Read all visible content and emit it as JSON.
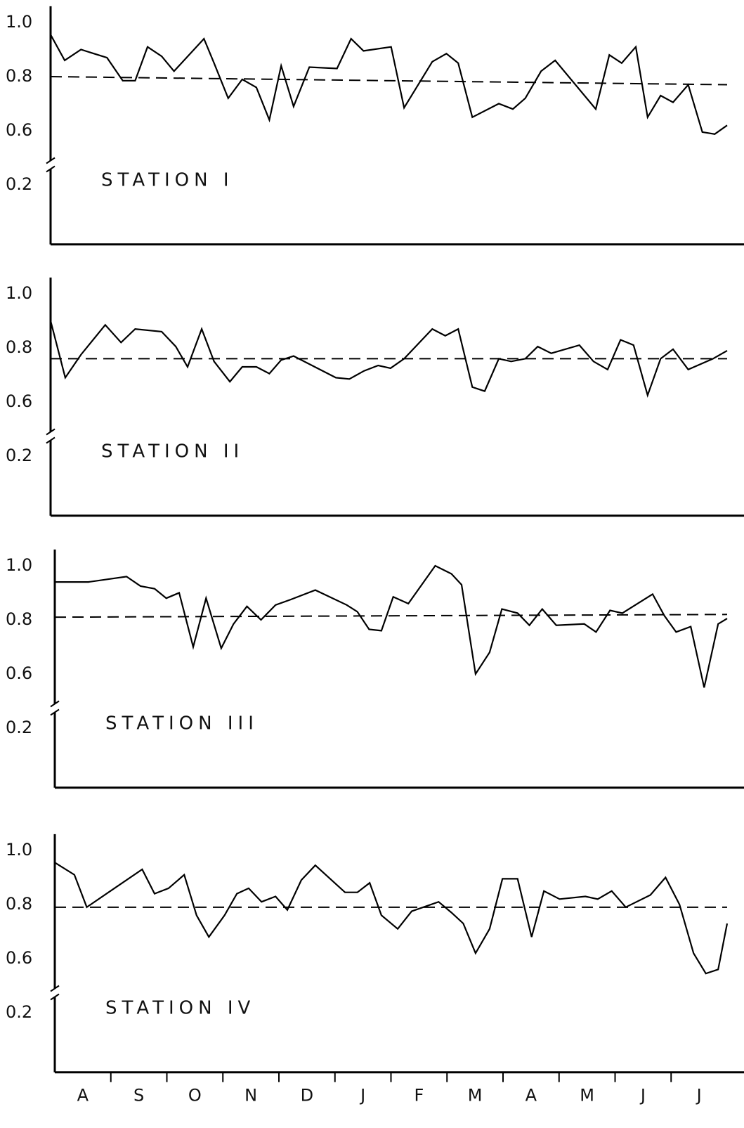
{
  "chart_data": [
    {
      "type": "line",
      "title": "STATION I",
      "color": "#000000",
      "broken_axis": true,
      "ylim": [
        0,
        1.07
      ],
      "yticks": [
        0.2,
        0.6,
        0.8,
        {
          "value": 1.0,
          "label": "1.0"
        }
      ],
      "xlim": [
        0,
        12
      ],
      "reference_line": [
        0.8,
        0.77
      ],
      "x": [
        0,
        0.25,
        0.54,
        1.0,
        1.28,
        1.5,
        1.72,
        1.97,
        2.19,
        2.72,
        2.9,
        3.15,
        3.4,
        3.65,
        3.88,
        4.09,
        4.31,
        4.59,
        5.08,
        5.33,
        5.55,
        6.04,
        6.27,
        6.77,
        7.02,
        7.23,
        7.48,
        7.95,
        8.2,
        8.42,
        8.7,
        8.95,
        9.67,
        9.91,
        10.13,
        10.38,
        10.59,
        10.82,
        11.04,
        11.31,
        11.56,
        11.78,
        12.0
      ],
      "values": [
        0.955,
        0.86,
        0.9,
        0.87,
        0.785,
        0.785,
        0.91,
        0.875,
        0.82,
        0.94,
        0.85,
        0.72,
        0.79,
        0.76,
        0.64,
        0.84,
        0.69,
        0.835,
        0.83,
        0.94,
        0.895,
        0.91,
        0.685,
        0.855,
        0.885,
        0.85,
        0.65,
        0.7,
        0.68,
        0.72,
        0.82,
        0.86,
        0.68,
        0.88,
        0.85,
        0.91,
        0.65,
        0.73,
        0.705,
        0.77,
        0.59,
        0.575,
        0.62
      ]
    },
    {
      "type": "line",
      "title": "STATION II",
      "color": "#000000",
      "broken_axis": true,
      "ylim": [
        0,
        1.07
      ],
      "yticks": [
        0.2,
        0.6,
        0.8,
        {
          "value": 1.0,
          "label": "1.0"
        }
      ],
      "xlim": [
        0,
        12
      ],
      "reference_line": [
        0.76,
        0.76
      ],
      "x": [
        0,
        0.26,
        0.54,
        0.97,
        1.25,
        1.5,
        1.97,
        2.22,
        2.43,
        2.68,
        2.9,
        3.18,
        3.4,
        3.65,
        3.88,
        4.09,
        4.31,
        5.06,
        5.3,
        5.56,
        5.81,
        6.03,
        6.27,
        6.77,
        7.0,
        7.23,
        7.48,
        7.7,
        7.95,
        8.17,
        8.42,
        8.64,
        8.88,
        9.38,
        9.63,
        9.88,
        10.11,
        10.34,
        10.59,
        10.82,
        11.04,
        11.31,
        11.75,
        12.0
      ],
      "values": [
        0.9,
        0.69,
        0.775,
        0.885,
        0.82,
        0.87,
        0.86,
        0.805,
        0.73,
        0.87,
        0.75,
        0.675,
        0.73,
        0.73,
        0.705,
        0.755,
        0.77,
        0.69,
        0.685,
        0.715,
        0.735,
        0.725,
        0.76,
        0.87,
        0.845,
        0.87,
        0.655,
        0.64,
        0.76,
        0.75,
        0.76,
        0.805,
        0.78,
        0.81,
        0.75,
        0.72,
        0.83,
        0.81,
        0.625,
        0.76,
        0.795,
        0.72,
        0.76,
        0.79
      ]
    },
    {
      "type": "line",
      "title": "STATION III",
      "color": "#000000",
      "broken_axis": true,
      "ylim": [
        0,
        1.07
      ],
      "yticks": [
        0.2,
        0.6,
        0.8,
        {
          "value": 1.0,
          "label": "1.0"
        }
      ],
      "xlim": [
        0,
        12
      ],
      "reference_line": [
        0.81,
        0.82
      ],
      "x": [
        0,
        0.6,
        1.28,
        1.53,
        1.78,
        1.99,
        2.22,
        2.47,
        2.7,
        2.97,
        3.19,
        3.43,
        3.68,
        3.94,
        4.21,
        4.65,
        5.21,
        5.4,
        5.61,
        5.83,
        6.04,
        6.31,
        6.79,
        7.08,
        7.26,
        7.51,
        7.76,
        7.98,
        8.26,
        8.47,
        8.7,
        8.95,
        9.45,
        9.66,
        9.91,
        10.13,
        10.67,
        10.88,
        11.09,
        11.35,
        11.59,
        11.84,
        12.0
      ],
      "values": [
        0.94,
        0.94,
        0.96,
        0.925,
        0.915,
        0.88,
        0.9,
        0.7,
        0.88,
        0.695,
        0.785,
        0.85,
        0.8,
        0.855,
        0.875,
        0.91,
        0.855,
        0.83,
        0.765,
        0.76,
        0.885,
        0.86,
        1.0,
        0.97,
        0.93,
        0.6,
        0.68,
        0.84,
        0.825,
        0.78,
        0.84,
        0.78,
        0.785,
        0.755,
        0.835,
        0.825,
        0.895,
        0.815,
        0.755,
        0.775,
        0.5,
        0.785,
        0.805
      ]
    },
    {
      "type": "line",
      "title": "STATION IV",
      "color": "#000000",
      "broken_axis": true,
      "ylim": [
        0,
        1.07
      ],
      "yticks": [
        0.2,
        0.6,
        0.8,
        {
          "value": 1.0,
          "label": "1.0"
        }
      ],
      "xlim": [
        0,
        12
      ],
      "reference_line": [
        0.79,
        0.79
      ],
      "categories": [
        "A",
        "S",
        "O",
        "N",
        "D",
        "J",
        "F",
        "M",
        "A",
        "M",
        "J",
        "J"
      ],
      "x": [
        0,
        0.35,
        0.57,
        1.03,
        1.56,
        1.78,
        2.03,
        2.31,
        2.53,
        2.75,
        3.03,
        3.25,
        3.46,
        3.69,
        3.94,
        4.15,
        4.4,
        4.65,
        5.18,
        5.4,
        5.62,
        5.83,
        6.12,
        6.37,
        6.85,
        7.08,
        7.29,
        7.51,
        7.76,
        7.99,
        8.26,
        8.51,
        8.73,
        9.01,
        9.47,
        9.69,
        9.94,
        10.19,
        10.63,
        10.9,
        11.15,
        11.4,
        11.62,
        11.84,
        12.0
      ],
      "values": [
        0.955,
        0.91,
        0.79,
        0.855,
        0.93,
        0.84,
        0.86,
        0.91,
        0.76,
        0.68,
        0.76,
        0.84,
        0.86,
        0.81,
        0.83,
        0.78,
        0.89,
        0.945,
        0.845,
        0.845,
        0.88,
        0.76,
        0.71,
        0.775,
        0.81,
        0.77,
        0.73,
        0.62,
        0.71,
        0.895,
        0.895,
        0.68,
        0.85,
        0.82,
        0.83,
        0.82,
        0.85,
        0.79,
        0.835,
        0.9,
        0.8,
        0.62,
        0.49,
        0.52,
        0.73
      ]
    }
  ]
}
